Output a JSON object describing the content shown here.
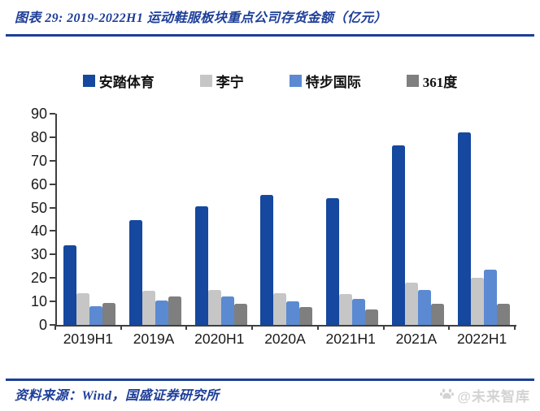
{
  "title": "图表 29:  2019-2022H1 运动鞋服板块重点公司存货金额（亿元）",
  "footer": {
    "source": "资料来源：Wind，国盛证券研究所",
    "watermark": "@未来智库"
  },
  "colors": {
    "accent_navy": "#1d3e99",
    "axis_gray": "#3f3f3f",
    "watermark_gray": "#d3d3d3",
    "series_anta_blue": "#15489e",
    "series_lining_gray": "#c6c6c6",
    "series_xtep_blue": "#5b8ad2",
    "series_361_gray": "#7f7f7f"
  },
  "chart_data": {
    "type": "bar",
    "title": "2019-2022H1 运动鞋服板块重点公司存货金额（亿元）",
    "unit": "亿元",
    "categories": [
      "2019H1",
      "2019A",
      "2020H1",
      "2020A",
      "2021H1",
      "2021A",
      "2022H1"
    ],
    "series": [
      {
        "name": "安踏体育",
        "color": "#15489e",
        "values": [
          34,
          44.5,
          50.5,
          55.5,
          54,
          76.5,
          82
        ]
      },
      {
        "name": "李宁",
        "color": "#c6c6c6",
        "values": [
          13.5,
          14.5,
          15,
          13.5,
          13,
          18,
          20
        ]
      },
      {
        "name": "特步国际",
        "color": "#5b8ad2",
        "values": [
          8,
          10.5,
          12,
          10,
          11,
          15,
          23.5
        ]
      },
      {
        "name": "361度",
        "color": "#7f7f7f",
        "values": [
          9.5,
          12,
          9,
          7.5,
          6.5,
          9,
          9
        ]
      }
    ],
    "ylim": [
      0,
      90
    ],
    "ytick_step": 10,
    "yticks": [
      0,
      10,
      20,
      30,
      40,
      50,
      60,
      70,
      80,
      90
    ],
    "grid": false,
    "legend_position": "top",
    "xlabel": "",
    "ylabel": ""
  }
}
